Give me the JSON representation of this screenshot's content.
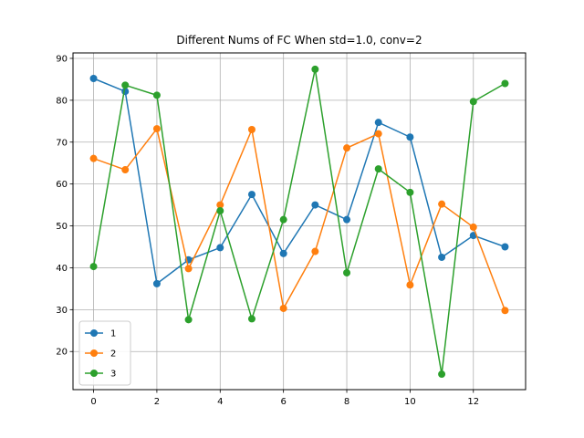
{
  "chart_data": {
    "type": "line",
    "title": "Different Nums of FC When std=1.0, conv=2",
    "xlabel": "",
    "ylabel": "",
    "x": [
      0,
      1,
      2,
      3,
      4,
      5,
      6,
      7,
      8,
      9,
      10,
      11,
      12,
      13
    ],
    "xlim": [
      -0.65,
      13.65
    ],
    "ylim": [
      10.9,
      91.3
    ],
    "xticks": [
      0,
      2,
      4,
      6,
      8,
      10,
      12
    ],
    "yticks": [
      20,
      30,
      40,
      50,
      60,
      70,
      80,
      90
    ],
    "grid": true,
    "legend_position": "lower-left",
    "series": [
      {
        "name": "1",
        "color": "#1f77b4",
        "values": [
          85.2,
          82.1,
          36.2,
          41.9,
          44.8,
          57.5,
          43.4,
          55.0,
          51.5,
          74.7,
          71.2,
          42.5,
          47.7,
          45.0
        ]
      },
      {
        "name": "2",
        "color": "#ff7f0e",
        "values": [
          66.1,
          63.4,
          73.2,
          39.8,
          55.0,
          73.0,
          30.3,
          43.9,
          68.6,
          72.0,
          35.9,
          55.2,
          49.7,
          29.8
        ]
      },
      {
        "name": "3",
        "color": "#2ca02c",
        "values": [
          40.3,
          83.6,
          81.2,
          27.6,
          53.6,
          27.8,
          51.5,
          87.4,
          38.8,
          63.6,
          58.0,
          14.6,
          79.7,
          84.0
        ]
      }
    ]
  }
}
